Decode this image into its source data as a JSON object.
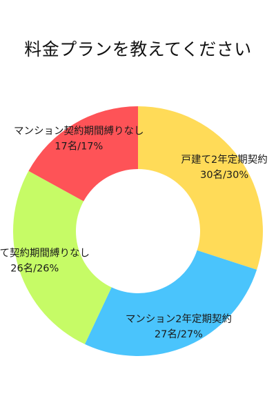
{
  "chart_data": {
    "type": "pie",
    "variant": "donut",
    "title": "料金プランを教えてください",
    "legend": "none",
    "categories": [
      "戸建て2年定期契約",
      "マンション2年定期契約",
      "戸建て契約期間縛りなし",
      "マンション契約期間縛りなし"
    ],
    "values": [
      30,
      27,
      26,
      17
    ],
    "value_labels": [
      "30名/30%",
      "27名/27%",
      "26名/26%",
      "17名/17%"
    ],
    "colors": [
      "#ffdb58",
      "#4ac4fc",
      "#c6fb66",
      "#fe5357"
    ],
    "start_angle_deg": 0,
    "direction": "clockwise"
  }
}
